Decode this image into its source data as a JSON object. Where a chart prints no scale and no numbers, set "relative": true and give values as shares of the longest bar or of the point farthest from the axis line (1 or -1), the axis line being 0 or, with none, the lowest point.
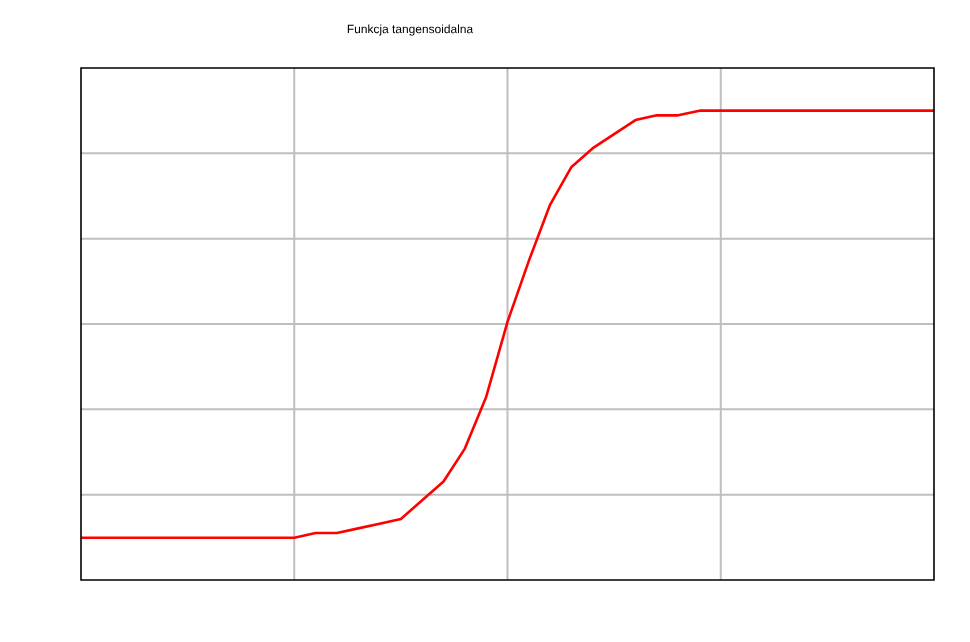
{
  "chart_data": {
    "type": "line",
    "title": "Funkcja tangensoidalna",
    "relative": true,
    "grid": true,
    "categories": [
      null,
      null,
      null,
      null,
      null,
      null,
      null,
      null,
      null,
      null,
      null,
      null,
      null,
      null,
      null,
      null,
      null,
      null,
      null,
      null,
      null,
      null,
      null,
      null,
      null,
      null,
      null,
      null,
      null,
      null,
      null,
      null,
      null,
      null,
      null,
      null,
      null,
      null,
      null,
      null,
      null
    ],
    "series": [
      {
        "color": "#ff0000",
        "values": [
          0.09,
          0.09,
          0.09,
          0.09,
          0.09,
          0.09,
          0.09,
          0.09,
          0.09,
          0.09,
          0.09,
          0.1,
          0.1,
          0.11,
          0.12,
          0.13,
          0.17,
          0.21,
          0.28,
          0.39,
          0.55,
          0.68,
          0.8,
          0.88,
          0.92,
          0.95,
          0.98,
          0.99,
          0.99,
          1,
          1,
          1,
          1,
          1,
          1,
          1,
          1,
          1,
          1,
          1,
          1
        ]
      }
    ]
  }
}
